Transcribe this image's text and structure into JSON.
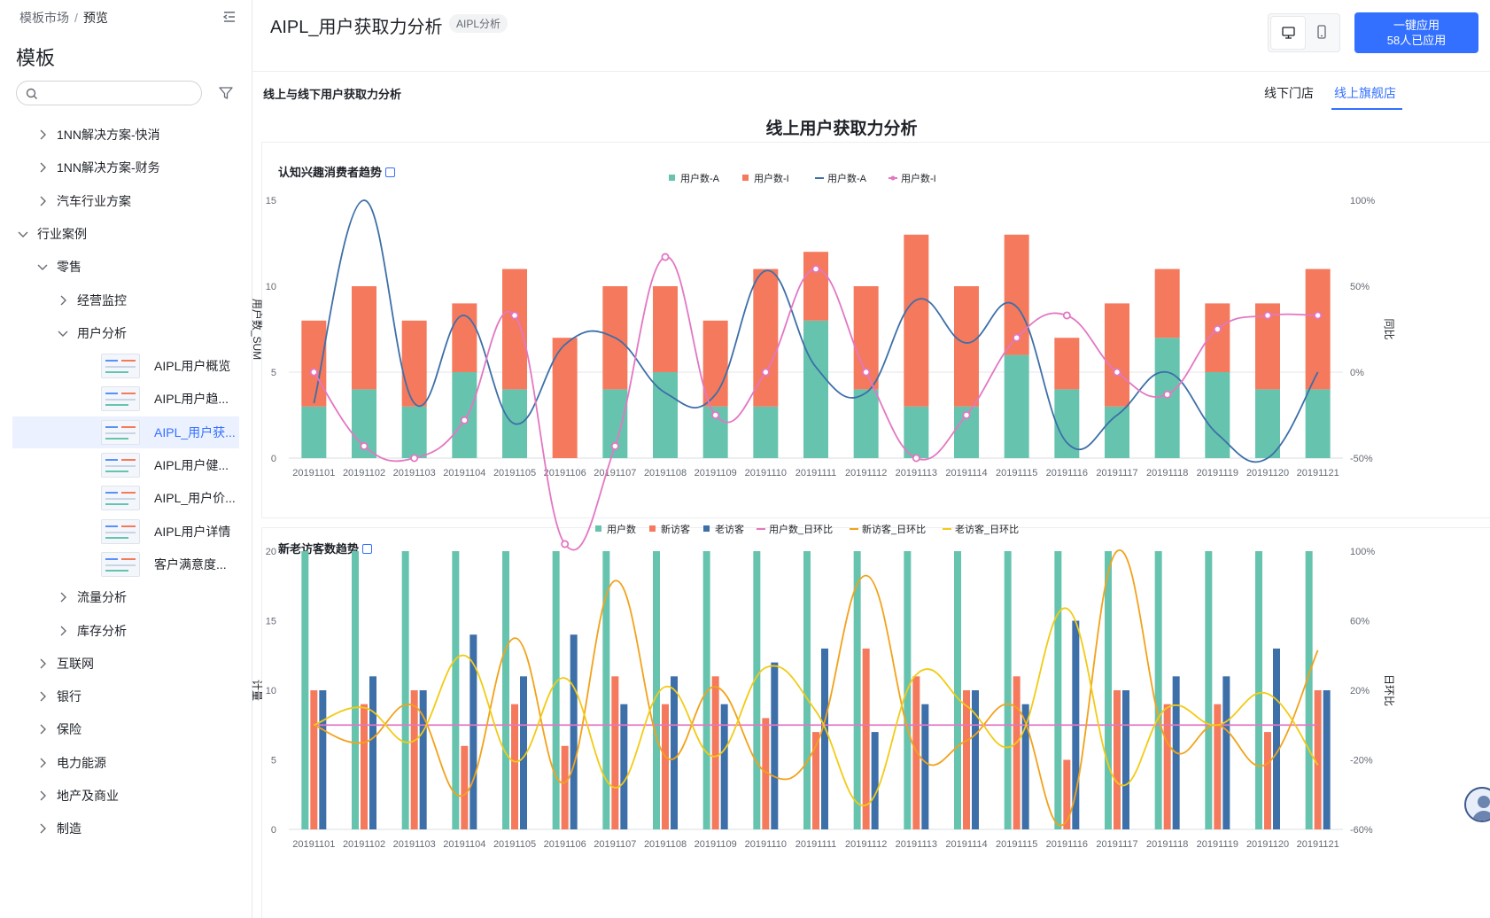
{
  "breadcrumb": {
    "root": "模板市场",
    "separator": "/",
    "current": "预览"
  },
  "sidebar": {
    "title": "模板",
    "search_placeholder": "",
    "items": [
      {
        "label": "1NN解决方案-快消",
        "level": 1,
        "expanded": false
      },
      {
        "label": "1NN解决方案-财务",
        "level": 1,
        "expanded": false
      },
      {
        "label": "汽车行业方案",
        "level": 1,
        "expanded": false
      },
      {
        "label": "行业案例",
        "level": 0,
        "expanded": true
      },
      {
        "label": "零售",
        "level": 1,
        "expanded": true
      },
      {
        "label": "经营监控",
        "level": 2,
        "expanded": false
      },
      {
        "label": "用户分析",
        "level": 2,
        "expanded": true
      },
      {
        "label": "AIPL用户概览",
        "leaf": true
      },
      {
        "label": "AIPL用户趋...",
        "leaf": true
      },
      {
        "label": "AIPL_用户获...",
        "leaf": true,
        "active": true
      },
      {
        "label": "AIPL用户健...",
        "leaf": true
      },
      {
        "label": "AIPL_用户价...",
        "leaf": true
      },
      {
        "label": "AIPL用户详情",
        "leaf": true
      },
      {
        "label": "客户满意度...",
        "leaf": true
      },
      {
        "label": "流量分析",
        "level": 2,
        "expanded": false
      },
      {
        "label": "库存分析",
        "level": 2,
        "expanded": false
      },
      {
        "label": "互联网",
        "level": 1,
        "expanded": false
      },
      {
        "label": "银行",
        "level": 1,
        "expanded": false
      },
      {
        "label": "保险",
        "level": 1,
        "expanded": false
      },
      {
        "label": "电力能源",
        "level": 1,
        "expanded": false
      },
      {
        "label": "地产及商业",
        "level": 1,
        "expanded": false
      },
      {
        "label": "制造",
        "level": 1,
        "expanded": false
      }
    ]
  },
  "header": {
    "title": "AIPL_用户获取力分析",
    "tag": "AIPL分析",
    "apply_label": "一键应用",
    "apply_count": "58人已应用"
  },
  "section": {
    "title": "线上与线下用户获取力分析",
    "tabs": [
      {
        "label": "线下门店",
        "active": false
      },
      {
        "label": "线上旗舰店",
        "active": true
      }
    ],
    "report_title": "线上用户获取力分析"
  },
  "colors": {
    "accent": "#3370ff",
    "orange": "#f5795c",
    "teal": "#66c4ae",
    "blue": "#3d6fa8",
    "pink": "#e377c2",
    "amber": "#f2a21a",
    "yellow": "#f2cb15"
  },
  "chart_data": [
    {
      "type": "bar",
      "title": "认知兴趣消费者趋势",
      "stacked": true,
      "categories": [
        "20191101",
        "20191102",
        "20191103",
        "20191104",
        "20191105",
        "20191106",
        "20191107",
        "20191108",
        "20191109",
        "20191110",
        "20191111",
        "20191112",
        "20191113",
        "20191114",
        "20191115",
        "20191116",
        "20191117",
        "20191118",
        "20191119",
        "20191120",
        "20191121"
      ],
      "ylabel": "用户数_SUM",
      "ylim": [
        0,
        15
      ],
      "yticks": [
        "0",
        "5",
        "10",
        "15"
      ],
      "y2label": "同比",
      "y2lim": [
        -50,
        100
      ],
      "y2ticks": [
        "-50%",
        "0%",
        "50%",
        "100%"
      ],
      "legend": [
        "用户数-A",
        "用户数-I",
        "用户数-A",
        "用户数-I"
      ],
      "series": [
        {
          "name": "用户数-I",
          "kind": "bar",
          "values": [
            3,
            4,
            3,
            5,
            4,
            0,
            4,
            5,
            3,
            3,
            8,
            4,
            3,
            3,
            6,
            4,
            3,
            7,
            5,
            4,
            4
          ]
        },
        {
          "name": "用户数-A",
          "kind": "bar",
          "values": [
            5,
            6,
            5,
            4,
            7,
            7,
            6,
            5,
            5,
            8,
            4,
            6,
            10,
            7,
            7,
            3,
            6,
            4,
            4,
            5,
            7
          ]
        },
        {
          "name": "用户数-A",
          "kind": "line",
          "axis": "y2",
          "values": [
            -18,
            100,
            -18,
            33,
            -30,
            16,
            20,
            -12,
            -13,
            59,
            3,
            -12,
            42,
            17,
            38,
            -41,
            -25,
            0,
            -36,
            -50,
            0
          ]
        },
        {
          "name": "用户数-I",
          "kind": "line",
          "axis": "y2",
          "values": [
            0,
            -43,
            -50,
            -28,
            33,
            -100,
            -43,
            67,
            -25,
            0,
            60,
            0,
            -50,
            -25,
            20,
            33,
            0,
            -13,
            25,
            33,
            33
          ]
        }
      ]
    },
    {
      "type": "bar",
      "title": "新老访客数趋势",
      "categories": [
        "20191101",
        "20191102",
        "20191103",
        "20191104",
        "20191105",
        "20191106",
        "20191107",
        "20191108",
        "20191109",
        "20191110",
        "20191111",
        "20191112",
        "20191113",
        "20191114",
        "20191115",
        "20191116",
        "20191117",
        "20191118",
        "20191119",
        "20191120",
        "20191121"
      ],
      "ylabel": "计量",
      "ylim": [
        0,
        20
      ],
      "yticks": [
        "0",
        "5",
        "10",
        "15",
        "20"
      ],
      "y2label": "日环比",
      "y2lim": [
        -60,
        100
      ],
      "y2ticks": [
        "-60%",
        "-20%",
        "20%",
        "60%",
        "100%"
      ],
      "legend": [
        "用户数",
        "新访客",
        "老访客",
        "用户数_日环比",
        "新访客_日环比",
        "老访客_日环比"
      ],
      "series": [
        {
          "name": "用户数",
          "kind": "bar",
          "values": [
            20,
            20,
            20,
            20,
            20,
            20,
            20,
            20,
            20,
            20,
            20,
            20,
            20,
            20,
            20,
            20,
            20,
            20,
            20,
            20,
            20
          ]
        },
        {
          "name": "新访客",
          "kind": "bar",
          "values": [
            10,
            9,
            10,
            6,
            9,
            6,
            11,
            9,
            11,
            8,
            7,
            13,
            11,
            10,
            11,
            5,
            10,
            9,
            9,
            7,
            10
          ]
        },
        {
          "name": "老访客",
          "kind": "bar",
          "values": [
            10,
            11,
            10,
            14,
            11,
            14,
            9,
            11,
            9,
            12,
            13,
            7,
            9,
            10,
            9,
            15,
            10,
            11,
            11,
            13,
            10
          ]
        },
        {
          "name": "用户数_日环比",
          "kind": "line",
          "axis": "y2",
          "values": [
            0,
            0,
            0,
            0,
            0,
            0,
            0,
            0,
            0,
            0,
            0,
            0,
            0,
            0,
            0,
            0,
            0,
            0,
            0,
            0,
            0
          ]
        },
        {
          "name": "新访客_日环比",
          "kind": "line",
          "axis": "y2",
          "values": [
            0,
            -10,
            11,
            -40,
            50,
            -33,
            83,
            -18,
            22,
            -27,
            -12,
            86,
            -15,
            -9,
            10,
            -55,
            100,
            -10,
            0,
            -22,
            43
          ]
        },
        {
          "name": "老访客_日环比",
          "kind": "line",
          "axis": "y2",
          "values": [
            0,
            10,
            -9,
            40,
            -21,
            27,
            -36,
            22,
            -18,
            33,
            8,
            -46,
            29,
            11,
            -10,
            67,
            -33,
            10,
            0,
            18,
            -23
          ]
        }
      ]
    }
  ]
}
